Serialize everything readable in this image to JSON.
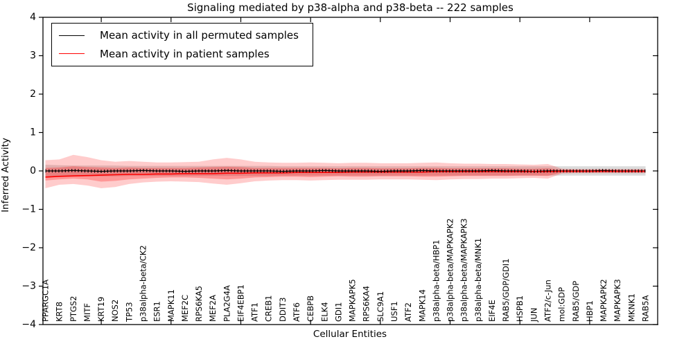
{
  "chart_data": {
    "type": "line",
    "title": "Signaling mediated by p38-alpha and p38-beta -- 222 samples",
    "xlabel": "Cellular Entities",
    "ylabel": "Inferred Activity",
    "ylim": [
      -4,
      4
    ],
    "yticks": [
      4,
      3,
      2,
      1,
      0,
      -1,
      -2,
      -3,
      -4
    ],
    "grid": false,
    "legend_position": "upper left",
    "categories": [
      "PPARGC1A",
      "KRT8",
      "PTGS2",
      "MITF",
      "KRT19",
      "NOS2",
      "TP53",
      "p38alpha-beta/CK2",
      "ESR1",
      "MAPK11",
      "MEF2C",
      "RPS6KA5",
      "MEF2A",
      "PLA2G4A",
      "EIF4EBP1",
      "ATF1",
      "CREB1",
      "DDIT3",
      "ATF6",
      "CEBPB",
      "ELK4",
      "GDI1",
      "MAPKAPK5",
      "RPS6KA4",
      "SLC9A1",
      "USF1",
      "ATF2",
      "MAPK14",
      "p38alpha-beta/HBP1",
      "p38alpha-beta/MAPKAPK2",
      "p38alpha-beta/MAPKAPK3",
      "p38alpha-beta/MNK1",
      "EIF4E",
      "RAB5/GDP/GDI1",
      "HSPB1",
      "JUN",
      "ATF2/c-Jun",
      "mol:GDP",
      "RAB5/GDP",
      "HBP1",
      "MAPKAPK2",
      "MAPKAPK3",
      "MKNK1",
      "RAB5A"
    ],
    "series": [
      {
        "name": "Mean activity in all permuted samples",
        "color": "#000000",
        "marker": "plus",
        "values": [
          0,
          0,
          0.01,
          0,
          -0.01,
          0,
          0,
          0.01,
          0,
          0,
          -0.01,
          0,
          0,
          0.01,
          0,
          0,
          0,
          -0.01,
          0,
          0,
          0.01,
          0,
          0,
          0,
          -0.01,
          0,
          0,
          0.01,
          0,
          0,
          0,
          0,
          0.01,
          0,
          0,
          -0.01,
          0,
          0,
          0,
          0,
          0.01,
          0,
          0,
          0
        ]
      },
      {
        "name": "Mean activity in patient samples",
        "color": "#ff0000",
        "marker": "none",
        "values": [
          -0.16,
          -0.14,
          -0.13,
          -0.12,
          -0.11,
          -0.1,
          -0.09,
          -0.09,
          -0.08,
          -0.08,
          -0.07,
          -0.07,
          -0.07,
          -0.06,
          -0.06,
          -0.05,
          -0.05,
          -0.05,
          -0.04,
          -0.04,
          -0.04,
          -0.04,
          -0.03,
          -0.03,
          -0.03,
          -0.03,
          -0.03,
          -0.03,
          -0.02,
          -0.02,
          -0.02,
          -0.02,
          -0.02,
          -0.02,
          -0.02,
          -0.02,
          -0.02,
          -0.01,
          -0.01,
          -0.01,
          -0.01,
          -0.01,
          -0.01,
          -0.01
        ]
      }
    ],
    "bands": [
      {
        "name": "permuted-samples-range",
        "color": "rgba(125,125,125,0.28)",
        "upper": [
          0.16,
          0.15,
          0.14,
          0.14,
          0.14,
          0.14,
          0.13,
          0.13,
          0.13,
          0.13,
          0.13,
          0.13,
          0.13,
          0.13,
          0.13,
          0.13,
          0.13,
          0.12,
          0.12,
          0.12,
          0.12,
          0.12,
          0.12,
          0.12,
          0.12,
          0.12,
          0.12,
          0.12,
          0.12,
          0.12,
          0.12,
          0.12,
          0.12,
          0.12,
          0.12,
          0.12,
          0.12,
          0.12,
          0.12,
          0.12,
          0.12,
          0.12,
          0.12,
          0.12
        ],
        "lower": [
          -0.16,
          -0.15,
          -0.14,
          -0.14,
          -0.14,
          -0.14,
          -0.13,
          -0.13,
          -0.13,
          -0.13,
          -0.13,
          -0.13,
          -0.13,
          -0.13,
          -0.13,
          -0.13,
          -0.13,
          -0.12,
          -0.12,
          -0.12,
          -0.12,
          -0.12,
          -0.12,
          -0.12,
          -0.12,
          -0.12,
          -0.12,
          -0.12,
          -0.12,
          -0.12,
          -0.12,
          -0.12,
          -0.12,
          -0.12,
          -0.12,
          -0.12,
          -0.12,
          -0.12,
          -0.12,
          -0.12,
          -0.12,
          -0.12,
          -0.12,
          -0.12
        ]
      },
      {
        "name": "patient-samples-range-outer",
        "color": "rgba(255,0,0,0.20)",
        "upper": [
          0.28,
          0.3,
          0.42,
          0.36,
          0.28,
          0.24,
          0.26,
          0.24,
          0.22,
          0.22,
          0.23,
          0.24,
          0.3,
          0.34,
          0.3,
          0.24,
          0.22,
          0.21,
          0.21,
          0.22,
          0.21,
          0.2,
          0.21,
          0.21,
          0.2,
          0.2,
          0.2,
          0.21,
          0.22,
          0.2,
          0.19,
          0.19,
          0.18,
          0.18,
          0.17,
          0.16,
          0.18,
          0.06,
          0.05,
          0.05,
          0.05,
          0.05,
          0.05,
          0.05
        ],
        "lower": [
          -0.45,
          -0.36,
          -0.34,
          -0.38,
          -0.45,
          -0.42,
          -0.34,
          -0.3,
          -0.28,
          -0.27,
          -0.28,
          -0.29,
          -0.33,
          -0.36,
          -0.32,
          -0.27,
          -0.25,
          -0.24,
          -0.24,
          -0.25,
          -0.24,
          -0.23,
          -0.23,
          -0.23,
          -0.22,
          -0.22,
          -0.22,
          -0.23,
          -0.24,
          -0.22,
          -0.21,
          -0.21,
          -0.2,
          -0.2,
          -0.19,
          -0.18,
          -0.2,
          -0.07,
          -0.06,
          -0.06,
          -0.06,
          -0.06,
          -0.06,
          -0.06
        ]
      },
      {
        "name": "patient-samples-range-inner",
        "color": "rgba(255,0,0,0.26)",
        "upper": [
          0.08,
          0.09,
          0.12,
          0.1,
          0.09,
          0.08,
          0.09,
          0.08,
          0.08,
          0.08,
          0.08,
          0.09,
          0.1,
          0.11,
          0.1,
          0.08,
          0.08,
          0.08,
          0.08,
          0.08,
          0.08,
          0.07,
          0.08,
          0.08,
          0.07,
          0.07,
          0.07,
          0.08,
          0.08,
          0.07,
          0.07,
          0.07,
          0.07,
          0.07,
          0.06,
          0.06,
          0.07,
          0.03,
          0.03,
          0.03,
          0.03,
          0.03,
          0.03,
          0.03
        ],
        "lower": [
          -0.25,
          -0.22,
          -0.2,
          -0.22,
          -0.28,
          -0.26,
          -0.22,
          -0.2,
          -0.18,
          -0.17,
          -0.17,
          -0.18,
          -0.2,
          -0.22,
          -0.2,
          -0.17,
          -0.16,
          -0.15,
          -0.15,
          -0.16,
          -0.15,
          -0.14,
          -0.15,
          -0.15,
          -0.14,
          -0.14,
          -0.14,
          -0.15,
          -0.15,
          -0.14,
          -0.13,
          -0.13,
          -0.13,
          -0.13,
          -0.12,
          -0.12,
          -0.13,
          -0.04,
          -0.04,
          -0.04,
          -0.04,
          -0.04,
          -0.04,
          -0.04
        ]
      }
    ]
  }
}
